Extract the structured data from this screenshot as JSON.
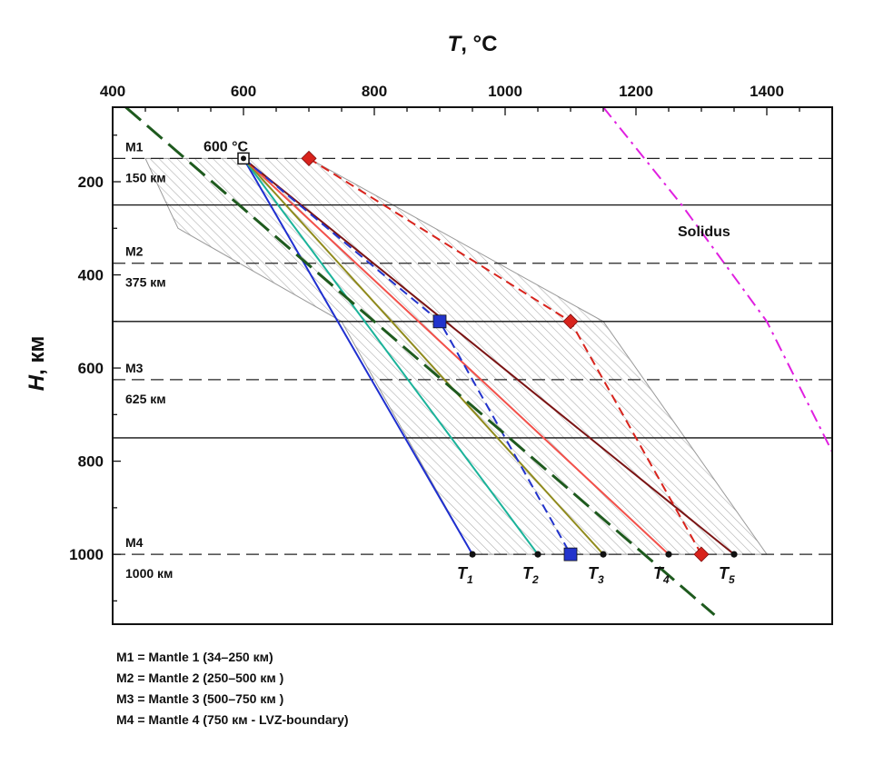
{
  "chart_data": {
    "type": "line",
    "title": "",
    "xlabel": {
      "var": "T",
      "unit": ", °C"
    },
    "ylabel": {
      "var": "H",
      "unit": ", км"
    },
    "xlim": [
      400,
      1500
    ],
    "ylim": [
      1150,
      40
    ],
    "x_ticks": [
      400,
      600,
      800,
      1000,
      1200,
      1400
    ],
    "y_ticks": [
      200,
      400,
      600,
      800,
      1000
    ],
    "x_axis_position": "top",
    "grid": false,
    "boundaries_solid": [
      250,
      500,
      750
    ],
    "mantle_levels": [
      {
        "id": "M1",
        "depth_label": "150 км",
        "depth": 150
      },
      {
        "id": "M2",
        "depth_label": "375 км",
        "depth": 375
      },
      {
        "id": "M3",
        "depth_label": "625 км",
        "depth": 625
      },
      {
        "id": "M4",
        "depth_label": "1000 км",
        "depth": 1000
      }
    ],
    "hatched_region": {
      "vertices": [
        [
          450,
          150
        ],
        [
          600,
          150
        ],
        [
          700,
          150
        ],
        [
          1150,
          500
        ],
        [
          1400,
          1000
        ],
        [
          950,
          1000
        ],
        [
          750,
          500
        ],
        [
          500,
          300
        ]
      ],
      "color": "#9a9a9a"
    },
    "series": [
      {
        "name": "T1",
        "label": "T",
        "sub": "1",
        "style": "solid",
        "color": "#1f2fd0",
        "x": [
          600,
          950
        ],
        "y": [
          150,
          1000
        ]
      },
      {
        "name": "T2",
        "label": "T",
        "sub": "2",
        "style": "solid",
        "color": "#1bb39a",
        "x": [
          600,
          1050
        ],
        "y": [
          150,
          1000
        ]
      },
      {
        "name": "T3",
        "label": "T",
        "sub": "3",
        "style": "solid",
        "color": "#8f8a1c",
        "x": [
          600,
          1150
        ],
        "y": [
          150,
          1000
        ]
      },
      {
        "name": "T4",
        "label": "T",
        "sub": "4",
        "style": "solid",
        "color": "#f2504a",
        "x": [
          600,
          1250
        ],
        "y": [
          150,
          1000
        ]
      },
      {
        "name": "T5",
        "label": "T",
        "sub": "5",
        "style": "solid",
        "color": "#7a1414",
        "x": [
          600,
          1350
        ],
        "y": [
          150,
          1000
        ]
      },
      {
        "name": "",
        "style": "dashed",
        "color": "#2233cc",
        "marker": "square",
        "x": [
          600,
          900,
          1100
        ],
        "y": [
          150,
          500,
          1000
        ]
      },
      {
        "name": "",
        "style": "dashed",
        "color": "#d8231c",
        "marker": "diamond",
        "x": [
          700,
          1100,
          1300
        ],
        "y": [
          150,
          500,
          1000
        ]
      },
      {
        "name": "",
        "style": "longdash",
        "color": "#1e5a1e",
        "x": [
          420,
          1320
        ],
        "y": [
          40,
          1130
        ]
      },
      {
        "name": "Solidus",
        "style": "dashdot",
        "color": "#e020e0",
        "x": [
          1150,
          1270,
          1400,
          1500
        ],
        "y": [
          40,
          250,
          500,
          780
        ]
      }
    ],
    "endpoint_dots": [
      {
        "x": 950,
        "y": 1000
      },
      {
        "x": 1050,
        "y": 1000
      },
      {
        "x": 1150,
        "y": 1000
      },
      {
        "x": 1250,
        "y": 1000
      },
      {
        "x": 1350,
        "y": 1000
      }
    ],
    "annotations": [
      {
        "text": "600 °C",
        "x": 600,
        "y": 150
      },
      {
        "text": "Solidus",
        "x": 1250,
        "y": 305
      }
    ]
  },
  "legend_notes": [
    "M1 = Mantle 1 (34–250 км)",
    "M2 = Mantle 2 (250–500 км )",
    "M3 = Mantle 3 (500–750 км )",
    "M4 = Mantle 4 (750 км - LVZ-boundary)"
  ]
}
